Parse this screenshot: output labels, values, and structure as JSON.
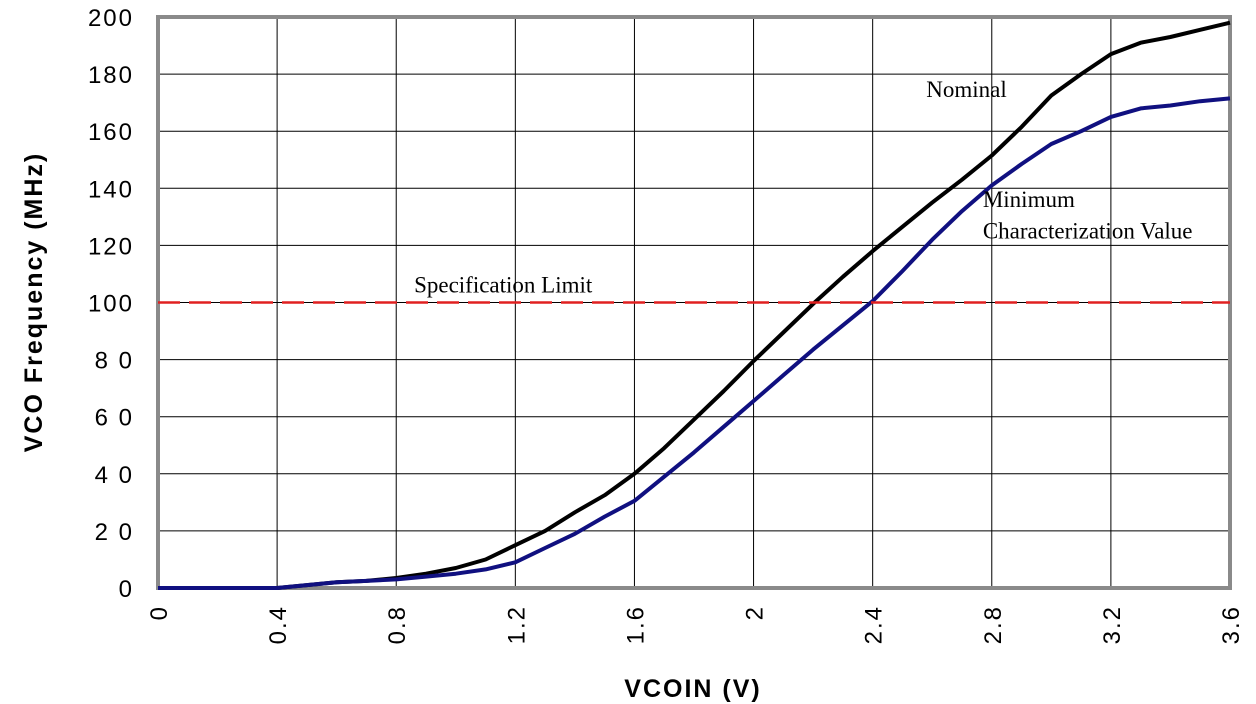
{
  "chart_data": {
    "type": "line",
    "xlabel": "VCOIN   (V)",
    "ylabel": "VCO  Frequency   (MHz)",
    "xlim": [
      0,
      3.6
    ],
    "ylim": [
      0,
      200
    ],
    "x_ticks": [
      "0",
      "0.4",
      "0.8",
      "1.2",
      "1.6",
      "2",
      "2.4",
      "2.8",
      "3.2",
      "3.6"
    ],
    "y_ticks": [
      "0",
      "2 0",
      "4 0",
      "6 0",
      "8 0",
      "100",
      "120",
      "140",
      "160",
      "180",
      "200"
    ],
    "grid": true,
    "series": [
      {
        "name": "Nominal",
        "color": "#000000",
        "x": [
          0,
          0.4,
          0.5,
          0.6,
          0.7,
          0.8,
          0.9,
          1.0,
          1.1,
          1.2,
          1.3,
          1.4,
          1.5,
          1.6,
          1.7,
          1.8,
          1.9,
          2.0,
          2.1,
          2.2,
          2.3,
          2.4,
          2.5,
          2.6,
          2.7,
          2.8,
          2.9,
          3.0,
          3.1,
          3.2,
          3.3,
          3.4,
          3.5,
          3.6
        ],
        "y": [
          0,
          0,
          1,
          2,
          2.5,
          3.5,
          5,
          7,
          10,
          15,
          20,
          26.5,
          32.5,
          40,
          49,
          59,
          69,
          79.5,
          89.5,
          99.5,
          109,
          118,
          126.5,
          135,
          143,
          151.5,
          161.5,
          172.5,
          180,
          187,
          191,
          193,
          195.5,
          198
        ]
      },
      {
        "name": "Minimum Characterization Value",
        "color": "#101080",
        "x": [
          0,
          0.4,
          0.5,
          0.6,
          0.7,
          0.8,
          0.9,
          1.0,
          1.1,
          1.2,
          1.3,
          1.4,
          1.5,
          1.6,
          1.7,
          1.8,
          1.9,
          2.0,
          2.1,
          2.2,
          2.3,
          2.4,
          2.5,
          2.6,
          2.7,
          2.8,
          2.9,
          3.0,
          3.1,
          3.2,
          3.3,
          3.4,
          3.5,
          3.6
        ],
        "y": [
          0,
          0,
          1,
          2,
          2.5,
          3,
          4,
          5,
          6.5,
          9,
          14,
          19,
          25,
          30.5,
          39,
          47.5,
          56.5,
          65.5,
          74.5,
          83.5,
          92,
          100.5,
          111,
          122,
          132,
          141,
          148.5,
          155.5,
          160,
          165,
          168,
          169,
          170.5,
          171.5
        ]
      },
      {
        "name": "Specification Limit",
        "color": "#e02020",
        "dashed": true,
        "x": [
          0,
          3.6
        ],
        "y": [
          100,
          100
        ]
      }
    ],
    "annotations": [
      {
        "text": "Nominal",
        "x": 2.58,
        "y": 172
      },
      {
        "text": "Minimum",
        "x": 2.77,
        "y": 133.5
      },
      {
        "text": "Characterization Value",
        "x": 2.77,
        "y": 122.5
      },
      {
        "text": "Specification Limit",
        "x": 0.86,
        "y": 103.5
      }
    ]
  }
}
